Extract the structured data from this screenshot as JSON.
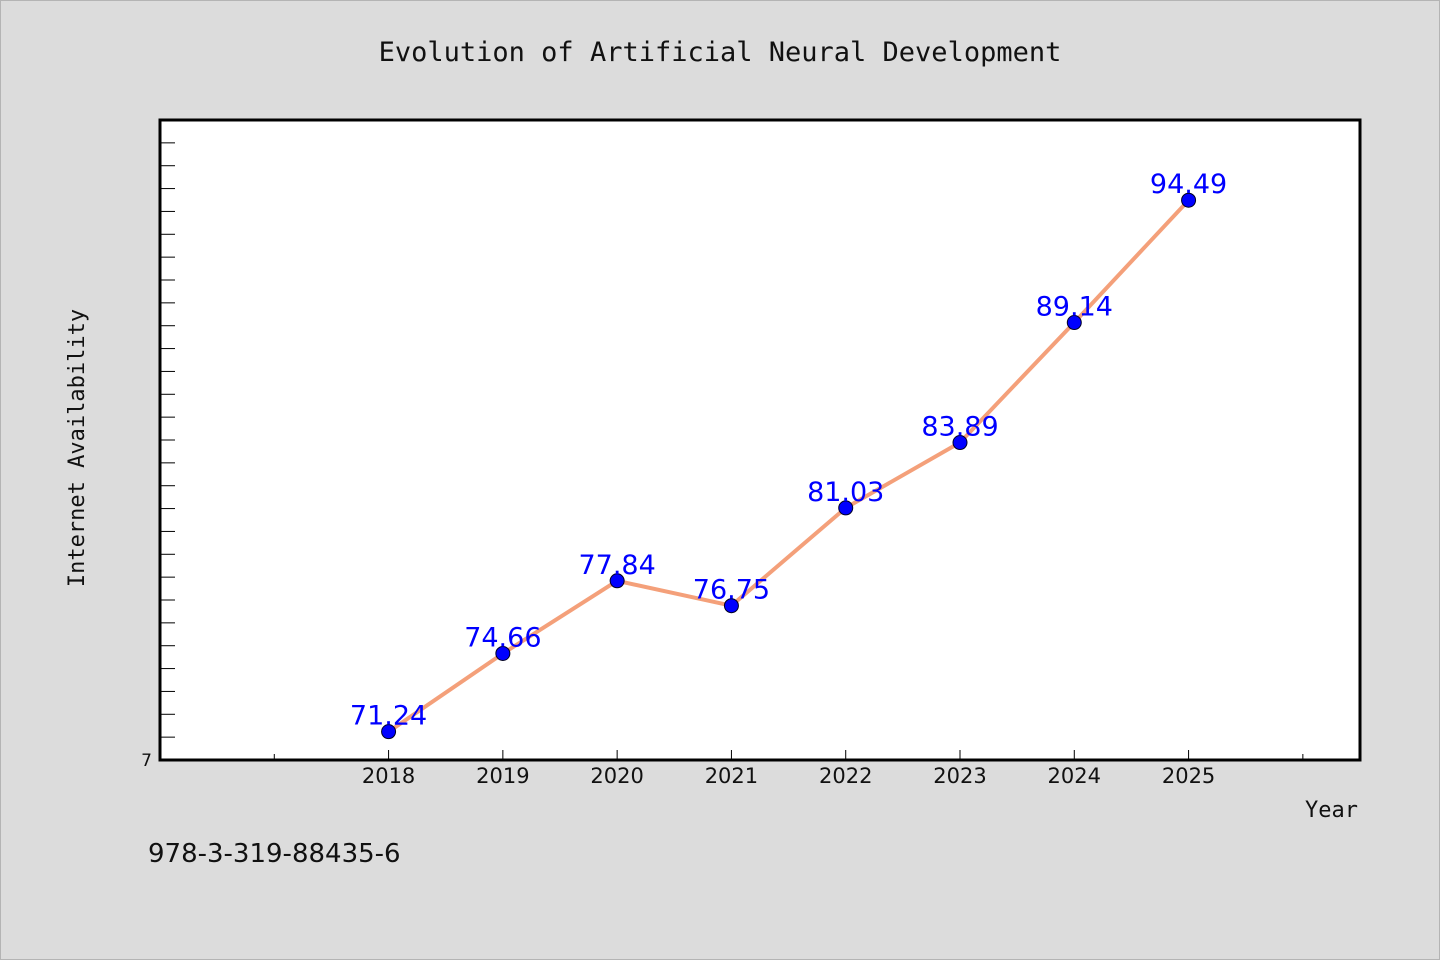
{
  "chart_data": {
    "type": "line",
    "title": "Evolution of Artificial Neural Development",
    "xlabel": "Year",
    "ylabel": "Internet Availability",
    "categories": [
      "2018",
      "2019",
      "2020",
      "2021",
      "2022",
      "2023",
      "2024",
      "2025"
    ],
    "series": [
      {
        "values": [
          71.24,
          74.66,
          77.84,
          76.75,
          81.03,
          83.89,
          89.14,
          94.49
        ]
      }
    ],
    "data_labels": [
      "71.24",
      "74.66",
      "77.84",
      "76.75",
      "81.03",
      "83.89",
      "89.14",
      "94.49"
    ],
    "ytick_labels": [
      "7"
    ],
    "ylim": [
      70,
      98
    ],
    "x_domain": [
      -2.0,
      8.5
    ],
    "grid": false,
    "legend": "none",
    "colors": {
      "background": "#dcdcdc",
      "plot_area": "#ffffff",
      "line": "#f4a07a",
      "marker": "#0000ff",
      "data_label": "#0000ff"
    }
  },
  "footer": {
    "code": "978-3-319-88435-6"
  }
}
